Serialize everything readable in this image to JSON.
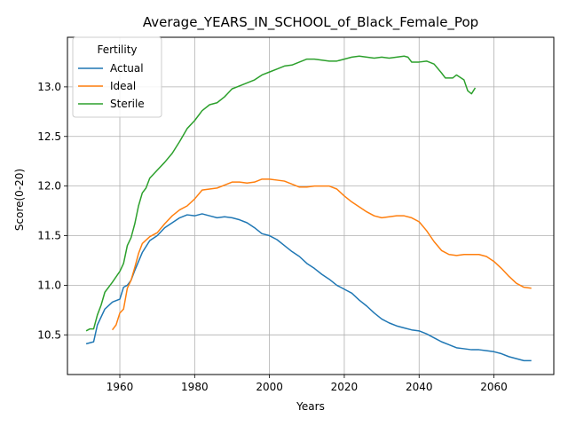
{
  "chart_data": {
    "type": "line",
    "title": "Average_YEARS_IN_SCHOOL_of_Black_Female_Pop",
    "xlabel": "Years",
    "ylabel": "Score(0-20)",
    "xlim": [
      1946,
      2076
    ],
    "ylim": [
      10.1,
      13.5
    ],
    "xticks": [
      1960,
      1980,
      2000,
      2020,
      2040,
      2060
    ],
    "yticks": [
      10.5,
      11.0,
      11.5,
      12.0,
      12.5,
      13.0
    ],
    "xtick_labels": [
      "1960",
      "1980",
      "2000",
      "2020",
      "2040",
      "2060"
    ],
    "ytick_labels": [
      "10.5",
      "11.0",
      "11.5",
      "12.0",
      "12.5",
      "13.0"
    ],
    "grid": true,
    "legend": {
      "title": "Fertility",
      "position": "upper-left"
    },
    "series": [
      {
        "name": "Actual",
        "color": "#1f77b4",
        "points": [
          [
            1951,
            10.41
          ],
          [
            1953,
            10.43
          ],
          [
            1954,
            10.6
          ],
          [
            1956,
            10.76
          ],
          [
            1958,
            10.83
          ],
          [
            1960,
            10.86
          ],
          [
            1961,
            10.98
          ],
          [
            1962,
            11.0
          ],
          [
            1963,
            11.05
          ],
          [
            1964,
            11.15
          ],
          [
            1966,
            11.33
          ],
          [
            1968,
            11.45
          ],
          [
            1970,
            11.5
          ],
          [
            1972,
            11.58
          ],
          [
            1974,
            11.63
          ],
          [
            1976,
            11.68
          ],
          [
            1978,
            11.71
          ],
          [
            1980,
            11.7
          ],
          [
            1982,
            11.72
          ],
          [
            1984,
            11.7
          ],
          [
            1986,
            11.68
          ],
          [
            1988,
            11.69
          ],
          [
            1990,
            11.68
          ],
          [
            1992,
            11.66
          ],
          [
            1994,
            11.63
          ],
          [
            1996,
            11.58
          ],
          [
            1998,
            11.52
          ],
          [
            2000,
            11.5
          ],
          [
            2002,
            11.46
          ],
          [
            2004,
            11.4
          ],
          [
            2006,
            11.34
          ],
          [
            2008,
            11.29
          ],
          [
            2010,
            11.22
          ],
          [
            2012,
            11.17
          ],
          [
            2014,
            11.11
          ],
          [
            2016,
            11.06
          ],
          [
            2018,
            11.0
          ],
          [
            2020,
            10.96
          ],
          [
            2022,
            10.92
          ],
          [
            2024,
            10.85
          ],
          [
            2026,
            10.79
          ],
          [
            2028,
            10.72
          ],
          [
            2030,
            10.66
          ],
          [
            2032,
            10.62
          ],
          [
            2034,
            10.59
          ],
          [
            2036,
            10.57
          ],
          [
            2038,
            10.55
          ],
          [
            2040,
            10.54
          ],
          [
            2042,
            10.51
          ],
          [
            2044,
            10.47
          ],
          [
            2046,
            10.43
          ],
          [
            2048,
            10.4
          ],
          [
            2050,
            10.37
          ],
          [
            2052,
            10.36
          ],
          [
            2054,
            10.35
          ],
          [
            2056,
            10.35
          ],
          [
            2058,
            10.34
          ],
          [
            2060,
            10.33
          ],
          [
            2062,
            10.31
          ],
          [
            2064,
            10.28
          ],
          [
            2066,
            10.26
          ],
          [
            2068,
            10.24
          ],
          [
            2070,
            10.24
          ]
        ]
      },
      {
        "name": "Ideal",
        "color": "#ff7f0e",
        "points": [
          [
            1958,
            10.55
          ],
          [
            1959,
            10.6
          ],
          [
            1960,
            10.72
          ],
          [
            1961,
            10.76
          ],
          [
            1962,
            10.97
          ],
          [
            1963,
            11.05
          ],
          [
            1964,
            11.18
          ],
          [
            1965,
            11.32
          ],
          [
            1966,
            11.42
          ],
          [
            1968,
            11.49
          ],
          [
            1970,
            11.53
          ],
          [
            1972,
            11.62
          ],
          [
            1974,
            11.7
          ],
          [
            1976,
            11.76
          ],
          [
            1978,
            11.8
          ],
          [
            1980,
            11.87
          ],
          [
            1982,
            11.96
          ],
          [
            1984,
            11.97
          ],
          [
            1986,
            11.98
          ],
          [
            1988,
            12.01
          ],
          [
            1990,
            12.04
          ],
          [
            1992,
            12.04
          ],
          [
            1994,
            12.03
          ],
          [
            1996,
            12.04
          ],
          [
            1998,
            12.07
          ],
          [
            2000,
            12.07
          ],
          [
            2002,
            12.06
          ],
          [
            2004,
            12.05
          ],
          [
            2006,
            12.02
          ],
          [
            2008,
            11.99
          ],
          [
            2010,
            11.99
          ],
          [
            2012,
            12.0
          ],
          [
            2014,
            12.0
          ],
          [
            2016,
            12.0
          ],
          [
            2018,
            11.97
          ],
          [
            2020,
            11.9
          ],
          [
            2022,
            11.84
          ],
          [
            2024,
            11.79
          ],
          [
            2026,
            11.74
          ],
          [
            2028,
            11.7
          ],
          [
            2030,
            11.68
          ],
          [
            2032,
            11.69
          ],
          [
            2034,
            11.7
          ],
          [
            2036,
            11.7
          ],
          [
            2038,
            11.68
          ],
          [
            2040,
            11.64
          ],
          [
            2042,
            11.55
          ],
          [
            2044,
            11.44
          ],
          [
            2046,
            11.35
          ],
          [
            2048,
            11.31
          ],
          [
            2050,
            11.3
          ],
          [
            2052,
            11.31
          ],
          [
            2054,
            11.31
          ],
          [
            2056,
            11.31
          ],
          [
            2058,
            11.29
          ],
          [
            2060,
            11.24
          ],
          [
            2062,
            11.17
          ],
          [
            2064,
            11.09
          ],
          [
            2066,
            11.02
          ],
          [
            2068,
            10.98
          ],
          [
            2070,
            10.97
          ]
        ]
      },
      {
        "name": "Sterile",
        "color": "#2ca02c",
        "points": [
          [
            1951,
            10.54
          ],
          [
            1952,
            10.56
          ],
          [
            1953,
            10.56
          ],
          [
            1954,
            10.7
          ],
          [
            1955,
            10.8
          ],
          [
            1956,
            10.93
          ],
          [
            1958,
            11.03
          ],
          [
            1960,
            11.14
          ],
          [
            1961,
            11.22
          ],
          [
            1962,
            11.4
          ],
          [
            1963,
            11.48
          ],
          [
            1964,
            11.62
          ],
          [
            1965,
            11.8
          ],
          [
            1966,
            11.93
          ],
          [
            1967,
            11.98
          ],
          [
            1968,
            12.08
          ],
          [
            1970,
            12.16
          ],
          [
            1972,
            12.24
          ],
          [
            1974,
            12.33
          ],
          [
            1976,
            12.45
          ],
          [
            1978,
            12.58
          ],
          [
            1980,
            12.66
          ],
          [
            1982,
            12.76
          ],
          [
            1984,
            12.82
          ],
          [
            1986,
            12.84
          ],
          [
            1988,
            12.9
          ],
          [
            1990,
            12.98
          ],
          [
            1992,
            13.01
          ],
          [
            1994,
            13.04
          ],
          [
            1996,
            13.07
          ],
          [
            1998,
            13.12
          ],
          [
            2000,
            13.15
          ],
          [
            2002,
            13.18
          ],
          [
            2004,
            13.21
          ],
          [
            2006,
            13.22
          ],
          [
            2008,
            13.25
          ],
          [
            2010,
            13.28
          ],
          [
            2012,
            13.28
          ],
          [
            2014,
            13.27
          ],
          [
            2016,
            13.26
          ],
          [
            2018,
            13.26
          ],
          [
            2020,
            13.28
          ],
          [
            2022,
            13.3
          ],
          [
            2024,
            13.31
          ],
          [
            2026,
            13.3
          ],
          [
            2028,
            13.29
          ],
          [
            2030,
            13.3
          ],
          [
            2032,
            13.29
          ],
          [
            2034,
            13.3
          ],
          [
            2036,
            13.31
          ],
          [
            2037,
            13.3
          ],
          [
            2038,
            13.25
          ],
          [
            2040,
            13.25
          ],
          [
            2042,
            13.26
          ],
          [
            2044,
            13.23
          ],
          [
            2046,
            13.14
          ],
          [
            2047,
            13.09
          ],
          [
            2049,
            13.09
          ],
          [
            2050,
            13.12
          ],
          [
            2052,
            13.07
          ],
          [
            2053,
            12.96
          ],
          [
            2054,
            12.93
          ],
          [
            2055,
            12.99
          ]
        ]
      }
    ]
  }
}
